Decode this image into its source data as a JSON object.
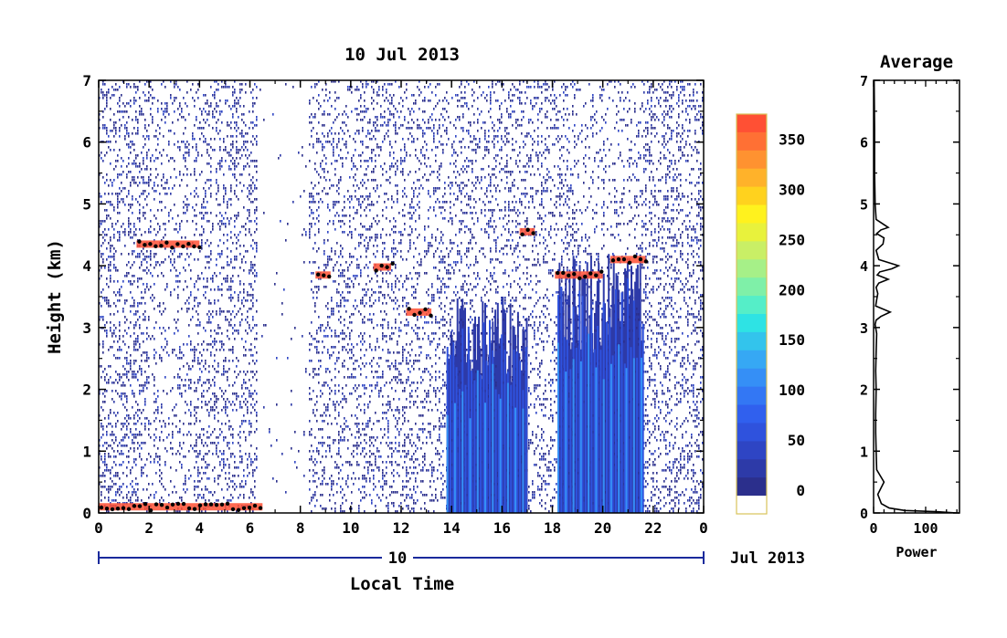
{
  "chart_data": [
    {
      "type": "heatmap",
      "title": "10 Jul 2013",
      "xlabel": "Local Time",
      "ylabel": "Height (km)",
      "xlim": [
        0,
        24
      ],
      "ylim": [
        0,
        7
      ],
      "x_ticks": [
        "0",
        "2",
        "4",
        "6",
        "8",
        "10",
        "12",
        "14",
        "16",
        "18",
        "20",
        "22",
        "0"
      ],
      "y_ticks": [
        "0",
        "1",
        "2",
        "3",
        "4",
        "5",
        "6",
        "7"
      ],
      "date_day": "10",
      "date_month_year": "Jul 2013",
      "colorbar": {
        "range": [
          0,
          375
        ],
        "tick_labels": [
          "0",
          "50",
          "100",
          "150",
          "200",
          "250",
          "300",
          "350"
        ],
        "colors": [
          "#ffffff",
          "#2b2f8c",
          "#2d3aa8",
          "#2e45c4",
          "#2f52dd",
          "#3060ee",
          "#3377f4",
          "#358ff6",
          "#36a8f4",
          "#33c4ec",
          "#2ee3e4",
          "#55eec8",
          "#7ff0a8",
          "#a6f088",
          "#c9ef66",
          "#e8f23c",
          "#fff21e",
          "#ffd21e",
          "#ffb22a",
          "#ff9230",
          "#ff7034",
          "#ff5034"
        ]
      },
      "features": [
        {
          "label": "surface layer",
          "start_hour": 0,
          "end_hour": 6.5,
          "height_km": 0.1
        },
        {
          "label": "layer",
          "start_hour": 1.5,
          "end_hour": 4.0,
          "height_km": 4.35
        },
        {
          "label": "layer",
          "start_hour": 8.6,
          "end_hour": 9.2,
          "height_km": 3.85
        },
        {
          "label": "layer",
          "start_hour": 10.9,
          "end_hour": 11.6,
          "height_km": 3.98
        },
        {
          "label": "layer",
          "start_hour": 12.2,
          "end_hour": 13.2,
          "height_km": 3.25
        },
        {
          "label": "layer",
          "start_hour": 16.7,
          "end_hour": 17.3,
          "height_km": 4.55
        },
        {
          "label": "layer",
          "start_hour": 18.1,
          "end_hour": 20.0,
          "height_km": 3.85
        },
        {
          "label": "layer",
          "start_hour": 20.3,
          "end_hour": 21.7,
          "height_km": 4.1
        },
        {
          "label": "convection",
          "start_hour": 13.8,
          "end_hour": 17.0,
          "top_km": 3.5
        },
        {
          "label": "convection",
          "start_hour": 18.2,
          "end_hour": 21.6,
          "top_km": 4.3
        }
      ]
    },
    {
      "type": "line",
      "title": "Average",
      "xlabel": "Power",
      "ylabel": "",
      "xlim": [
        0,
        165
      ],
      "ylim": [
        0,
        7
      ],
      "x_ticks": [
        "0",
        "100"
      ],
      "y_ticks": [
        "0",
        "1",
        "2",
        "3",
        "4",
        "5",
        "6",
        "7"
      ],
      "series": [
        {
          "x": [
            160,
            120,
            60,
            30,
            15,
            8,
            20,
            6,
            5,
            4,
            4,
            5,
            4,
            5,
            6,
            3,
            5,
            14,
            32,
            4,
            6,
            8,
            5,
            10,
            28,
            7,
            12,
            35,
            48,
            10,
            5,
            18,
            20,
            6,
            14,
            28,
            5,
            3,
            2,
            2,
            1
          ],
          "y": [
            0.0,
            0.02,
            0.04,
            0.08,
            0.15,
            0.3,
            0.5,
            0.7,
            1.0,
            1.3,
            1.6,
            2.0,
            2.3,
            2.6,
            2.9,
            3.05,
            3.12,
            3.18,
            3.25,
            3.35,
            3.45,
            3.55,
            3.65,
            3.72,
            3.78,
            3.85,
            3.9,
            3.95,
            4.0,
            4.1,
            4.25,
            4.35,
            4.45,
            4.52,
            4.58,
            4.62,
            4.75,
            5.0,
            5.5,
            6.2,
            7.0
          ]
        }
      ]
    }
  ]
}
